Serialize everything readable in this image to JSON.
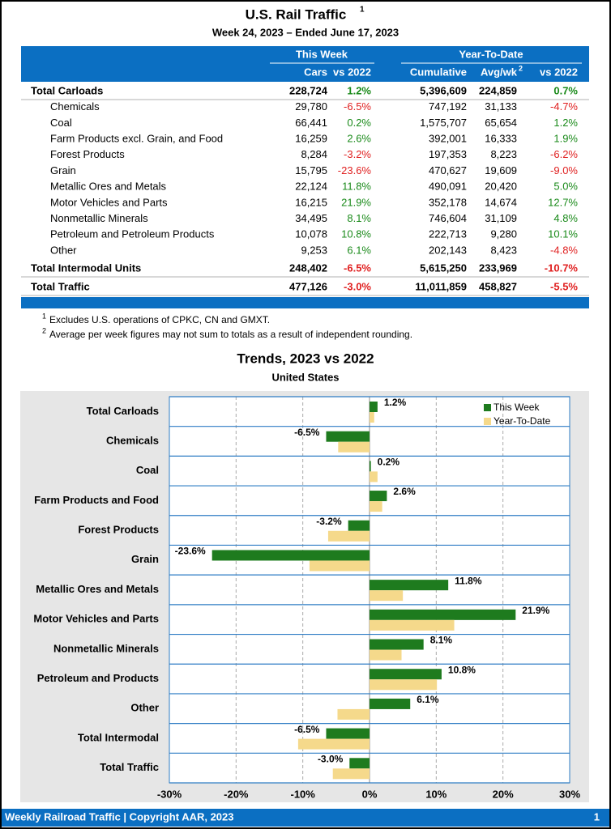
{
  "header": {
    "title": "U.S. Rail Traffic",
    "title_note": "1",
    "subtitle": "Week 24, 2023 – Ended June 17, 2023"
  },
  "table": {
    "groups": [
      "This Week",
      "Year-To-Date"
    ],
    "columns": [
      "Cars",
      "vs 2022",
      "Cumulative",
      "Avg/wk",
      "vs 2022"
    ],
    "avg_note": "2",
    "rows": [
      [
        "Total Carloads",
        "228,724",
        "1.2%",
        "5,396,609",
        "224,859",
        "0.7%"
      ],
      [
        "Chemicals",
        "29,780",
        "-6.5%",
        "747,192",
        "31,133",
        "-4.7%"
      ],
      [
        "Coal",
        "66,441",
        "0.2%",
        "1,575,707",
        "65,654",
        "1.2%"
      ],
      [
        "Farm Products excl. Grain, and Food",
        "16,259",
        "2.6%",
        "392,001",
        "16,333",
        "1.9%"
      ],
      [
        "Forest Products",
        "8,284",
        "-3.2%",
        "197,353",
        "8,223",
        "-6.2%"
      ],
      [
        "Grain",
        "15,795",
        "-23.6%",
        "470,627",
        "19,609",
        "-9.0%"
      ],
      [
        "Metallic Ores and Metals",
        "22,124",
        "11.8%",
        "490,091",
        "20,420",
        "5.0%"
      ],
      [
        "Motor Vehicles and Parts",
        "16,215",
        "21.9%",
        "352,178",
        "14,674",
        "12.7%"
      ],
      [
        "Nonmetallic Minerals",
        "34,495",
        "8.1%",
        "746,604",
        "31,109",
        "4.8%"
      ],
      [
        "Petroleum and Petroleum Products",
        "10,078",
        "10.8%",
        "222,713",
        "9,280",
        "10.1%"
      ],
      [
        "Other",
        "9,253",
        "6.1%",
        "202,143",
        "8,423",
        "-4.8%"
      ],
      [
        "Total Intermodal Units",
        "248,402",
        "-6.5%",
        "5,615,250",
        "233,969",
        "-10.7%"
      ],
      [
        "Total Traffic",
        "477,126",
        "-3.0%",
        "11,011,859",
        "458,827",
        "-5.5%"
      ]
    ]
  },
  "footnotes": [
    {
      "mark": "1",
      "text": "Excludes U.S. operations of CPKC, CN and GMXT."
    },
    {
      "mark": "2",
      "text": "Average per week figures may not sum to totals as a result of independent rounding."
    }
  ],
  "chart_data": {
    "type": "hbar",
    "title": "Trends, 2023 vs 2022",
    "subtitle": "United States",
    "categories": [
      "Total Carloads",
      "Chemicals",
      "Coal",
      "Farm Products and Food",
      "Forest Products",
      "Grain",
      "Metallic Ores and Metals",
      "Motor Vehicles and Parts",
      "Nonmetallic Minerals",
      "Petroleum and Products",
      "Other",
      "Total Intermodal",
      "Total Traffic"
    ],
    "series": [
      {
        "name": "This Week",
        "color": "#1e7b1e",
        "values": [
          1.2,
          -6.5,
          0.2,
          2.6,
          -3.2,
          -23.6,
          11.8,
          21.9,
          8.1,
          10.8,
          6.1,
          -6.5,
          -3.0
        ],
        "value_labels": [
          "1.2%",
          "-6.5%",
          "0.2%",
          "2.6%",
          "-3.2%",
          "-23.6%",
          "11.8%",
          "21.9%",
          "8.1%",
          "10.8%",
          "6.1%",
          "-6.5%",
          "-3.0%"
        ]
      },
      {
        "name": "Year-To-Date",
        "color": "#f5d98b",
        "values": [
          0.7,
          -4.7,
          1.2,
          1.9,
          -6.2,
          -9.0,
          5.0,
          12.7,
          4.8,
          10.1,
          -4.8,
          -10.7,
          -5.5
        ]
      }
    ],
    "xlim": [
      -30,
      30
    ],
    "xticks": [
      {
        "value": -30,
        "label": "-30%"
      },
      {
        "value": -20,
        "label": "-20%"
      },
      {
        "value": -10,
        "label": "-10%"
      },
      {
        "value": 0,
        "label": "0%"
      },
      {
        "value": 10,
        "label": "10%"
      },
      {
        "value": 20,
        "label": "20%"
      },
      {
        "value": 30,
        "label": "30%"
      }
    ],
    "grid": true,
    "legend": "top-right"
  },
  "footer": {
    "text": "Weekly Railroad Traffic | Copyright AAR, 2023",
    "page": "1"
  }
}
